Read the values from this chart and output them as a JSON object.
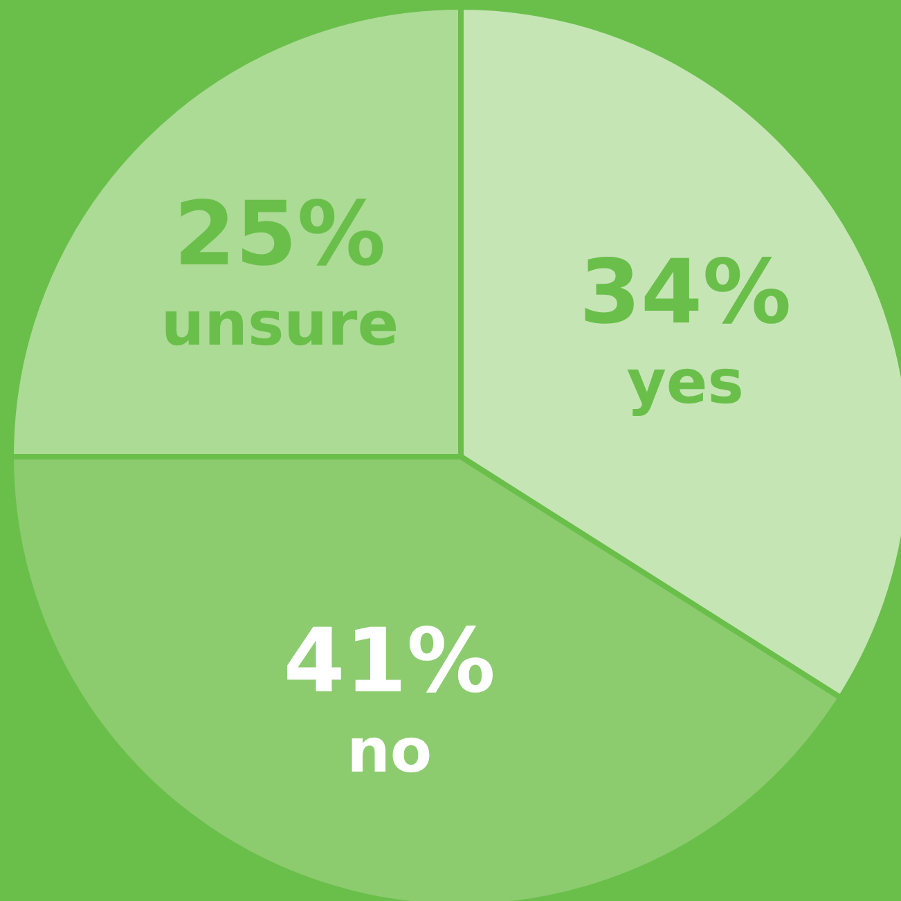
{
  "chart_data": {
    "type": "pie",
    "categories": [
      "yes",
      "no",
      "unsure"
    ],
    "values": [
      34,
      41,
      25
    ],
    "colors": [
      "#c6e5b5",
      "#8ccc6f",
      "#acdb95"
    ],
    "value_labels": [
      "34%",
      "41%",
      "25%"
    ]
  }
}
